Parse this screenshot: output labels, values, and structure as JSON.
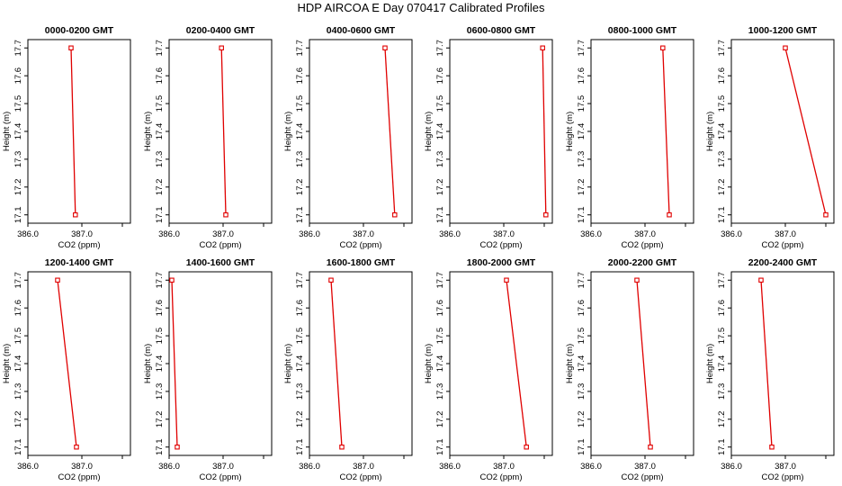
{
  "chart_data": {
    "title": "HDP  AIRCOA E  Day 070417  Calibrated Profiles",
    "type": "line",
    "xlabel": "CO2 (ppm)",
    "ylabel": "Height (m)",
    "xlim": [
      386.0,
      387.9
    ],
    "ylim": [
      17.07,
      17.73
    ],
    "xticks": [
      "386.0",
      "387.0"
    ],
    "yticks": [
      "17.1",
      "17.2",
      "17.3",
      "17.4",
      "17.5",
      "17.6",
      "17.7"
    ],
    "heights": [
      17.7,
      17.1
    ],
    "series_color": "#e00000",
    "panels": [
      {
        "name": "0000-0200 GMT",
        "co2": [
          386.8,
          386.88
        ]
      },
      {
        "name": "0200-0400 GMT",
        "co2": [
          386.97,
          387.05
        ]
      },
      {
        "name": "0400-0600 GMT",
        "co2": [
          387.4,
          387.58
        ]
      },
      {
        "name": "0600-0800 GMT",
        "co2": [
          387.72,
          387.78
        ]
      },
      {
        "name": "0800-1000 GMT",
        "co2": [
          387.33,
          387.45
        ]
      },
      {
        "name": "1000-1200 GMT",
        "co2": [
          387.0,
          387.75
        ]
      },
      {
        "name": "1200-1400 GMT",
        "co2": [
          386.55,
          386.9
        ]
      },
      {
        "name": "1400-1600 GMT",
        "co2": [
          386.05,
          386.15
        ]
      },
      {
        "name": "1600-1800 GMT",
        "co2": [
          386.4,
          386.6
        ]
      },
      {
        "name": "1800-2000 GMT",
        "co2": [
          387.05,
          387.42
        ]
      },
      {
        "name": "2000-2200 GMT",
        "co2": [
          386.85,
          387.1
        ]
      },
      {
        "name": "2200-2400 GMT",
        "co2": [
          386.55,
          386.75
        ]
      }
    ]
  }
}
